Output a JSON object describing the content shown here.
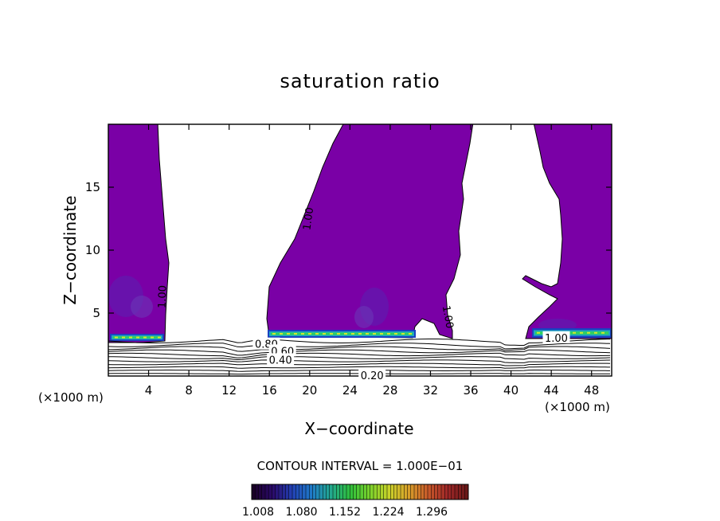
{
  "chart_data": {
    "type": "contour",
    "title": "saturation ratio",
    "xlabel": "X−coordinate",
    "ylabel": "Z−coordinate",
    "x_unit_label": "(×1000 m)",
    "xlim": [
      0,
      50
    ],
    "ylim": [
      0,
      20
    ],
    "x_ticks": [
      4,
      8,
      12,
      16,
      20,
      24,
      28,
      32,
      36,
      40,
      44,
      48
    ],
    "y_ticks": [
      5,
      10,
      15
    ],
    "contour_interval_text": "CONTOUR INTERVAL = 1.000E−01",
    "contour_labels": [
      {
        "text": "1.00",
        "x": 5.3,
        "z": 6.3,
        "angle": -88
      },
      {
        "text": "1.00",
        "x": 19.8,
        "z": 12.5,
        "angle": -82
      },
      {
        "text": "1.00",
        "x": 33.8,
        "z": 4.7,
        "angle": 80
      },
      {
        "text": "1.00",
        "x": 44.5,
        "z": 3.05,
        "angle": 0
      },
      {
        "text": "0.80",
        "x": 15.7,
        "z": 2.55,
        "angle": 0
      },
      {
        "text": "0.60",
        "x": 17.3,
        "z": 2.0,
        "angle": 0
      },
      {
        "text": "0.40",
        "x": 17.1,
        "z": 1.3,
        "angle": 0
      },
      {
        "text": "0.20",
        "x": 26.2,
        "z": 0.05,
        "angle": 0
      }
    ],
    "colorbar": {
      "ticks": [
        "1.008",
        "1.080",
        "1.152",
        "1.224",
        "1.296"
      ],
      "colors": [
        "#1a0028",
        "#2a0a6a",
        "#2240b4",
        "#1f7ac8",
        "#23a88e",
        "#2fbf3c",
        "#7ad22c",
        "#c8d22a",
        "#d8a02a",
        "#c85a2a",
        "#a02828",
        "#6a1818"
      ]
    },
    "fill_color": "#7a00a6",
    "shading": {
      "dark_patches": [
        "#5a20b0",
        "#6a3ab8"
      ],
      "band_colors": [
        "#1a40c0",
        "#20a8c0",
        "#30d060",
        "#d0e830"
      ]
    }
  }
}
